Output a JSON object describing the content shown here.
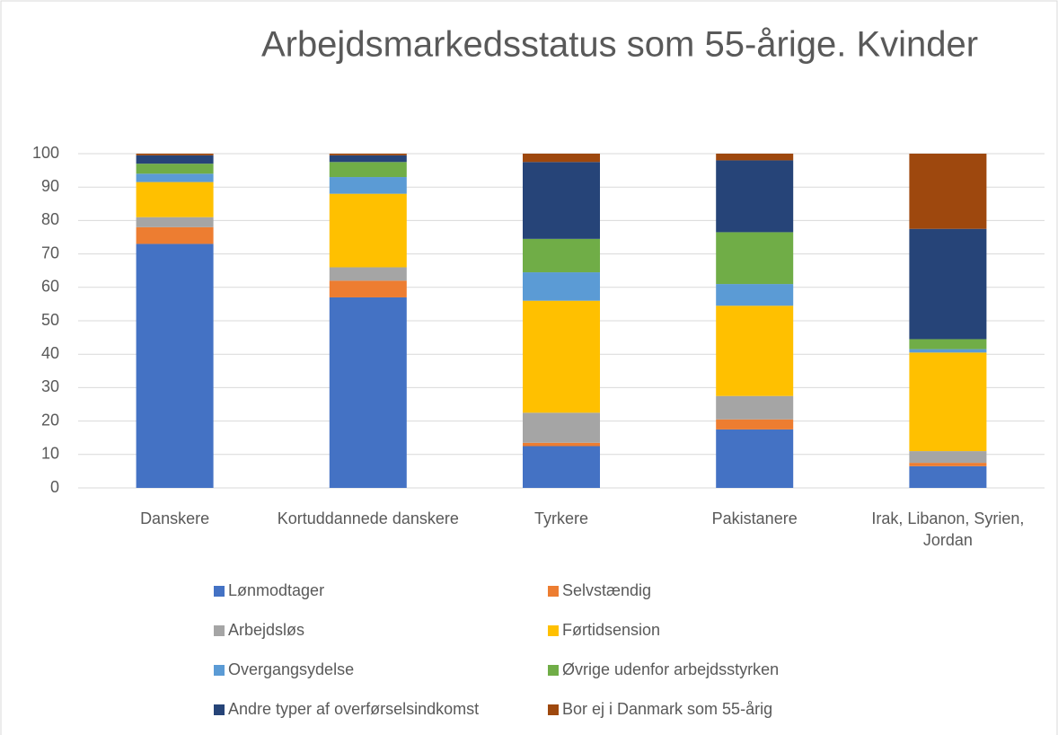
{
  "chart_data": {
    "type": "stacked_bar",
    "title": "Arbejdsmarkedsstatus som 55-årige. Kvinder",
    "categories": [
      "Danskere",
      "Kortuddannede danskere",
      "Tyrkere",
      "Pakistanere",
      "Irak, Libanon, Syrien, Jordan"
    ],
    "series": [
      {
        "name": "Lønmodtager",
        "color": "#4472c4",
        "values": [
          73,
          57,
          12.5,
          17.5,
          6.5
        ]
      },
      {
        "name": "Selvstændig",
        "color": "#ed7d31",
        "values": [
          5,
          5,
          1,
          3,
          1
        ]
      },
      {
        "name": "Arbejdsløs",
        "color": "#a5a5a5",
        "values": [
          3,
          4,
          9,
          7,
          3.5
        ]
      },
      {
        "name": "Førtidsension",
        "color": "#ffc000",
        "values": [
          10.5,
          22,
          33.5,
          27,
          29.5
        ]
      },
      {
        "name": "Overgangsydelse",
        "color": "#5b9bd5",
        "values": [
          2.5,
          5,
          8.5,
          6.5,
          1
        ]
      },
      {
        "name": "Øvrige udenfor arbejdsstyrken",
        "color": "#70ad47",
        "values": [
          3,
          4.5,
          10,
          15.5,
          3
        ]
      },
      {
        "name": "Andre typer af overførselsindkomst",
        "color": "#264478",
        "values": [
          2.5,
          2,
          23,
          21.5,
          33
        ]
      },
      {
        "name": "Bor ej i Danmark som 55-årig",
        "color": "#9e480e",
        "values": [
          0.5,
          0.5,
          2.5,
          2,
          22.5
        ]
      }
    ],
    "ylim": [
      0,
      100
    ],
    "yticks": [
      0,
      10,
      20,
      30,
      40,
      50,
      60,
      70,
      80,
      90,
      100
    ],
    "grid": true,
    "legend": "bottom"
  }
}
